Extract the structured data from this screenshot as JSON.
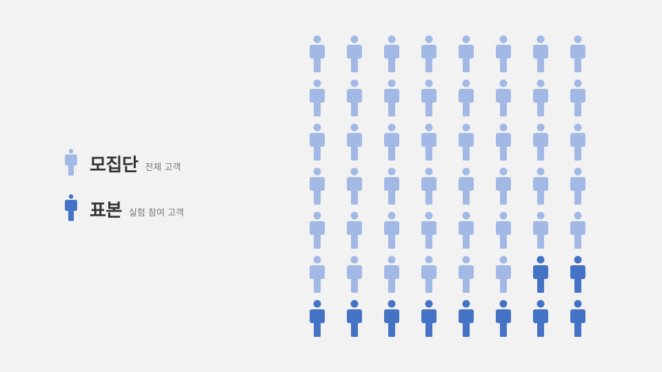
{
  "legend": {
    "population": {
      "title": "모집단",
      "subtitle": "전체 고객",
      "icon": "person-icon",
      "color": "#a3b9e5"
    },
    "sample": {
      "title": "표본",
      "subtitle": "실험 참여 고객",
      "icon": "person-icon",
      "color": "#4472c4"
    }
  },
  "grid": {
    "columns": 8,
    "rows": 7,
    "total_count": 56,
    "sample_count": 10
  }
}
